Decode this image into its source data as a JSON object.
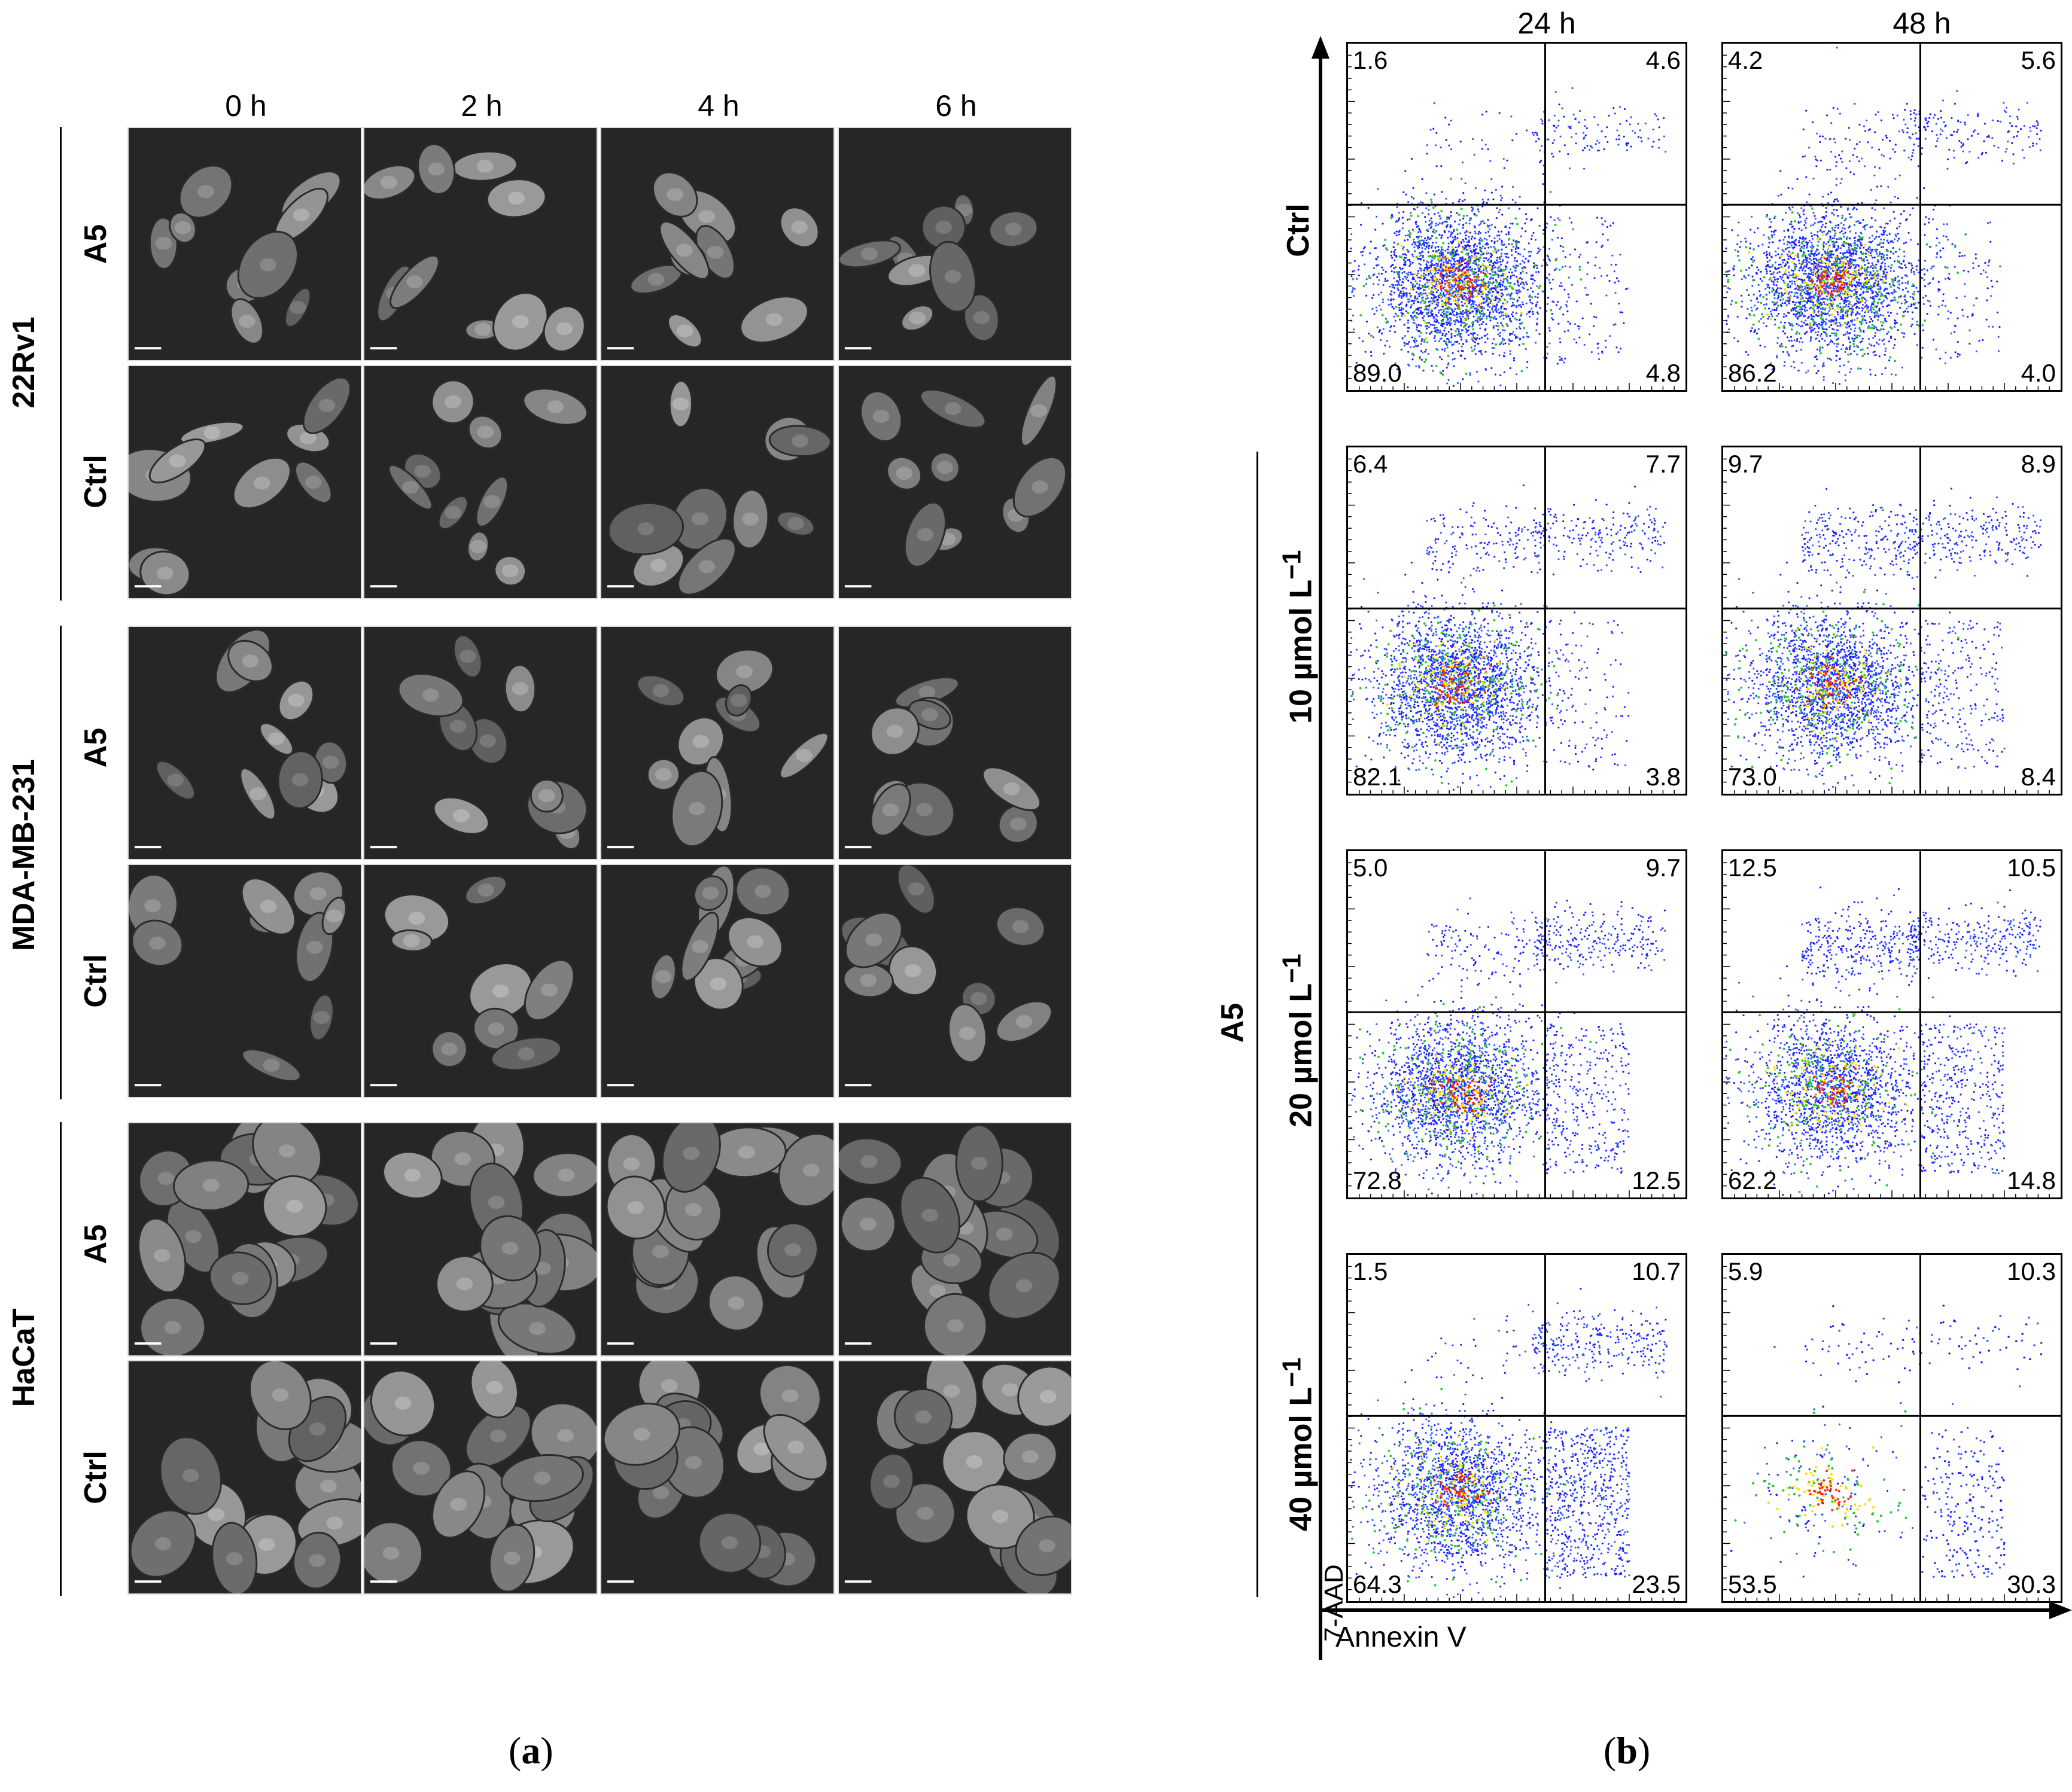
{
  "panel_a": {
    "time_labels": [
      "0 h",
      "2 h",
      "4 h",
      "6 h"
    ],
    "cell_lines": [
      {
        "name": "22Rv1",
        "rows": [
          "A5",
          "Ctrl"
        ]
      },
      {
        "name": "MDA-MB-231",
        "rows": [
          "A5",
          "Ctrl"
        ]
      },
      {
        "name": "HaCaT",
        "rows": [
          "A5",
          "Ctrl"
        ]
      }
    ],
    "caption": {
      "open": "(",
      "letter": "a",
      "close": ")"
    }
  },
  "panel_b": {
    "time_labels": [
      "24 h",
      "48 h"
    ],
    "group_label": "A5",
    "row_labels": [
      "Ctrl",
      "10 µmol L",
      "20 µmol L",
      "40 µmol L"
    ],
    "row_label_sup": "−1",
    "y_axis_label": "7-AAD",
    "x_axis_label": "Annexin V",
    "caption": {
      "open": "(",
      "letter": "b",
      "close": ")"
    },
    "chart_data": {
      "type": "scatter",
      "subtype": "flow-cytometry-quadrant",
      "xlabel": "Annexin V",
      "ylabel": "7-AAD",
      "columns": [
        "24 h",
        "48 h"
      ],
      "rows": [
        "Ctrl",
        "10 µmol L−1",
        "20 µmol L−1",
        "40 µmol L−1"
      ],
      "quadrant_order": [
        "upper-left",
        "upper-right",
        "lower-left",
        "lower-right"
      ],
      "panels": [
        {
          "row": "Ctrl",
          "time": "24 h",
          "quadrants": [
            "1.6",
            "4.6",
            "89.0",
            "4.8"
          ]
        },
        {
          "row": "Ctrl",
          "time": "48 h",
          "quadrants": [
            "4.2",
            "5.6",
            "86.2",
            "4.0"
          ]
        },
        {
          "row": "10 µmol L−1",
          "time": "24 h",
          "quadrants": [
            "6.4",
            "7.7",
            "82.1",
            "3.8"
          ]
        },
        {
          "row": "10 µmol L−1",
          "time": "48 h",
          "quadrants": [
            "9.7",
            "8.9",
            "73.0",
            "8.4"
          ]
        },
        {
          "row": "20 µmol L−1",
          "time": "24 h",
          "quadrants": [
            "5.0",
            "9.7",
            "72.8",
            "12.5"
          ]
        },
        {
          "row": "20 µmol L−1",
          "time": "48 h",
          "quadrants": [
            "12.5",
            "10.5",
            "62.2",
            "14.8"
          ]
        },
        {
          "row": "40 µmol L−1",
          "time": "24 h",
          "quadrants": [
            "1.5",
            "10.7",
            "64.3",
            "23.5"
          ]
        },
        {
          "row": "40 µmol L−1",
          "time": "48 h",
          "quadrants": [
            "5.9",
            "10.3",
            "53.5",
            "30.3"
          ]
        }
      ]
    }
  }
}
